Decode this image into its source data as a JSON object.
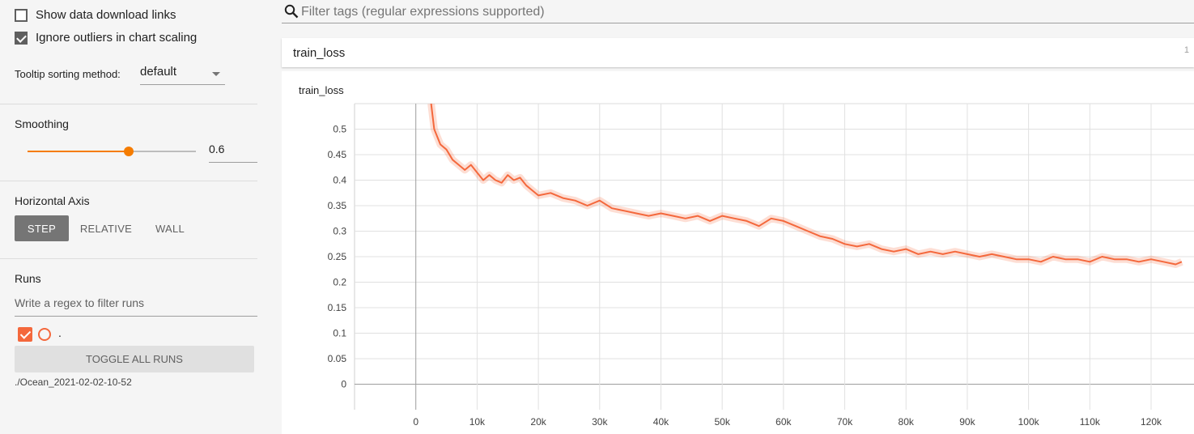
{
  "sidebar": {
    "show_download_label": "Show data download links",
    "show_download_checked": false,
    "ignore_outliers_label": "Ignore outliers in chart scaling",
    "ignore_outliers_checked": true,
    "tooltip_label": "Tooltip sorting method:",
    "tooltip_value": "default",
    "smoothing_label": "Smoothing",
    "smoothing_value": "0.6",
    "smoothing_fraction": 0.6,
    "horizontal_axis_label": "Horizontal Axis",
    "axis_options": [
      "STEP",
      "RELATIVE",
      "WALL"
    ],
    "axis_selected": "STEP",
    "runs_label": "Runs",
    "runs_filter_placeholder": "Write a regex to filter runs",
    "run_name": ".",
    "toggle_all_label": "TOGGLE ALL RUNS",
    "run_path": "./Ocean_2021-02-02-10-52",
    "run_color": "#f4683c",
    "accent_color": "#f57c00"
  },
  "main": {
    "filter_placeholder": "Filter tags (regular expressions supported)",
    "card_title": "train_loss",
    "card_count": "1",
    "chart_title": "train_loss"
  },
  "chart_data": {
    "type": "line",
    "title": "train_loss",
    "xlabel": "",
    "ylabel": "",
    "xlim": [
      -10000,
      127000
    ],
    "ylim": [
      -0.05,
      0.55
    ],
    "x_ticks": [
      0,
      10000,
      20000,
      30000,
      40000,
      50000,
      60000,
      70000,
      80000,
      90000,
      100000,
      110000,
      120000
    ],
    "x_tick_labels": [
      "0",
      "10k",
      "20k",
      "30k",
      "40k",
      "50k",
      "60k",
      "70k",
      "80k",
      "90k",
      "100k",
      "110k",
      "120k"
    ],
    "y_ticks": [
      0,
      0.05,
      0.1,
      0.15,
      0.2,
      0.25,
      0.3,
      0.35,
      0.4,
      0.45,
      0.5
    ],
    "y_tick_labels": [
      "0",
      "0.05",
      "0.1",
      "0.15",
      "0.2",
      "0.25",
      "0.3",
      "0.35",
      "0.4",
      "0.45",
      "0.5"
    ],
    "grid": true,
    "series": [
      {
        "color": "#f4683c",
        "x": [
          2500,
          3000,
          4000,
          5000,
          6000,
          7000,
          8000,
          9000,
          10000,
          11000,
          12000,
          13000,
          14000,
          15000,
          16000,
          17000,
          18000,
          19000,
          20000,
          22000,
          24000,
          26000,
          28000,
          30000,
          32000,
          34000,
          36000,
          38000,
          40000,
          42000,
          44000,
          46000,
          48000,
          50000,
          52000,
          54000,
          56000,
          58000,
          60000,
          62000,
          64000,
          66000,
          68000,
          70000,
          72000,
          74000,
          76000,
          78000,
          80000,
          82000,
          84000,
          86000,
          88000,
          90000,
          92000,
          94000,
          96000,
          98000,
          100000,
          102000,
          104000,
          106000,
          108000,
          110000,
          112000,
          114000,
          116000,
          118000,
          120000,
          122000,
          124000,
          125000
        ],
        "y": [
          0.55,
          0.5,
          0.47,
          0.46,
          0.44,
          0.43,
          0.42,
          0.43,
          0.415,
          0.4,
          0.41,
          0.4,
          0.395,
          0.41,
          0.4,
          0.405,
          0.39,
          0.38,
          0.37,
          0.375,
          0.365,
          0.36,
          0.35,
          0.36,
          0.345,
          0.34,
          0.335,
          0.33,
          0.335,
          0.33,
          0.325,
          0.33,
          0.32,
          0.33,
          0.325,
          0.32,
          0.31,
          0.325,
          0.32,
          0.31,
          0.3,
          0.29,
          0.285,
          0.275,
          0.27,
          0.275,
          0.265,
          0.26,
          0.265,
          0.255,
          0.26,
          0.255,
          0.26,
          0.255,
          0.25,
          0.255,
          0.25,
          0.245,
          0.245,
          0.24,
          0.25,
          0.245,
          0.245,
          0.24,
          0.25,
          0.245,
          0.245,
          0.24,
          0.245,
          0.24,
          0.235,
          0.24
        ]
      }
    ]
  }
}
